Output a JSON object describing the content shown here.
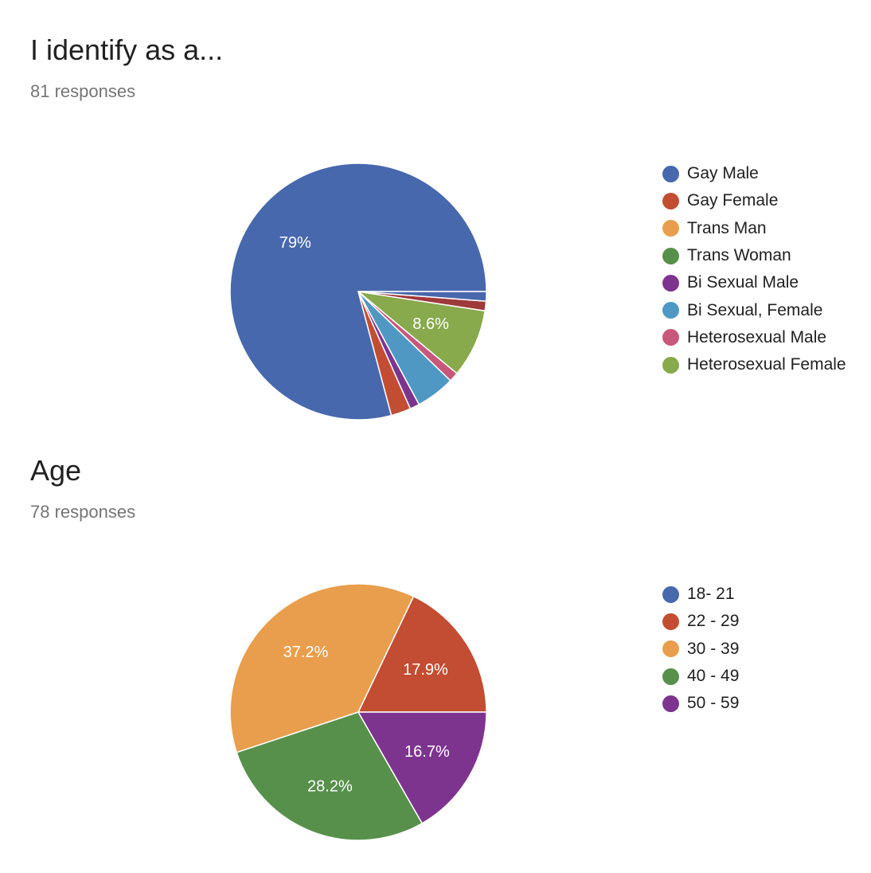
{
  "colors": {
    "blue": "#4868ad",
    "red": "#c24d32",
    "orange": "#e89e4c",
    "green": "#57904b",
    "purple": "#7d348e",
    "light_blue": "#4f98c3",
    "pink": "#c8587b",
    "light_green": "#88a94c",
    "dark_red": "#9e3a3a"
  },
  "chart_data": [
    {
      "type": "pie",
      "title": "I identify as a...",
      "subtitle": "81 responses",
      "legend_position": "right",
      "legend": [
        {
          "name": "Gay Male",
          "color": "#4868ad"
        },
        {
          "name": "Gay Female",
          "color": "#c24d32"
        },
        {
          "name": "Trans Man",
          "color": "#e89e4c"
        },
        {
          "name": "Trans Woman",
          "color": "#57904b"
        },
        {
          "name": "Bi Sexual Male",
          "color": "#7d348e"
        },
        {
          "name": "Bi Sexual, Female",
          "color": "#4f98c3"
        },
        {
          "name": "Heterosexual Male",
          "color": "#c8587b"
        },
        {
          "name": "Heterosexual Female",
          "color": "#88a94c"
        }
      ],
      "slices": [
        {
          "value": 79,
          "color": "#4868ad",
          "label": "79%"
        },
        {
          "value": 2.5,
          "color": "#c24d32",
          "label": ""
        },
        {
          "value": 1.2,
          "color": "#7d348e",
          "label": ""
        },
        {
          "value": 4.9,
          "color": "#4f98c3",
          "label": ""
        },
        {
          "value": 1.2,
          "color": "#c8587b",
          "label": ""
        },
        {
          "value": 8.6,
          "color": "#88a94c",
          "label": "8.6%"
        },
        {
          "value": 1.2,
          "color": "#9e3a3a",
          "label": ""
        },
        {
          "value": 1.2,
          "color": "#4868ad",
          "label": ""
        }
      ]
    },
    {
      "type": "pie",
      "title": "Age",
      "subtitle": "78 responses",
      "legend_position": "right",
      "legend": [
        {
          "name": "18- 21",
          "color": "#4868ad"
        },
        {
          "name": "22 - 29",
          "color": "#c24d32"
        },
        {
          "name": "30 - 39",
          "color": "#e89e4c"
        },
        {
          "name": "40 - 49",
          "color": "#57904b"
        },
        {
          "name": "50 - 59",
          "color": "#7d348e"
        }
      ],
      "slices": [
        {
          "value": 17.9,
          "color": "#c24d32",
          "label": "17.9%"
        },
        {
          "value": 37.2,
          "color": "#e89e4c",
          "label": "37.2%"
        },
        {
          "value": 28.2,
          "color": "#57904b",
          "label": "28.2%"
        },
        {
          "value": 16.7,
          "color": "#7d348e",
          "label": "16.7%"
        }
      ]
    }
  ]
}
